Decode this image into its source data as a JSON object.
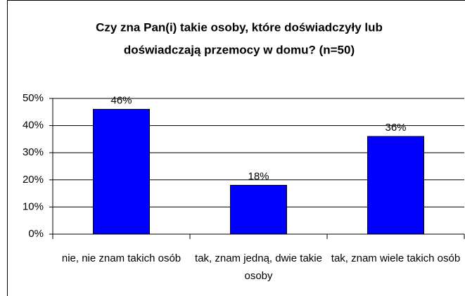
{
  "chart_data": {
    "type": "bar",
    "title": [
      "Czy zna Pan(i) takie osoby, które doświadczyły lub",
      "doświadczają przemocy w domu? (n=50)"
    ],
    "categories": [
      "nie, nie znam takich osób",
      "tak, znam jedną, dwie takie osoby",
      "tak, znam wiele takich osób"
    ],
    "values": [
      46,
      18,
      36
    ],
    "value_labels": [
      "46%",
      "18%",
      "36%"
    ],
    "color": "#0000ff",
    "ylim": [
      0,
      50
    ],
    "yticks": [
      {
        "value": 0,
        "label": "0%"
      },
      {
        "value": 10,
        "label": "10%"
      },
      {
        "value": 20,
        "label": "20%"
      },
      {
        "value": 30,
        "label": "30%"
      },
      {
        "value": 40,
        "label": "40%"
      },
      {
        "value": 50,
        "label": "50%"
      }
    ],
    "grid": true
  }
}
